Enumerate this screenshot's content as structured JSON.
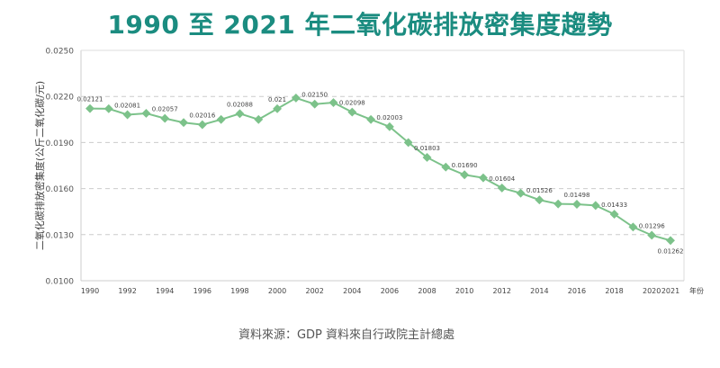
{
  "chart_data": {
    "type": "line",
    "title": "1990 至 2021 年二氧化碳排放密集度趨勢",
    "ylabel": "二氧化碳排放密集度(公斤二氧化碳/元)",
    "xlabel": "年份",
    "ylim": [
      0.01,
      0.025
    ],
    "yticks": [
      "0.0100",
      "0.0130",
      "0.0160",
      "0.0190",
      "0.0220",
      "0.0250"
    ],
    "xticks": [
      "1990",
      "1992",
      "1994",
      "1996",
      "1998",
      "2000",
      "2002",
      "2004",
      "2006",
      "2008",
      "2010",
      "2012",
      "2014",
      "2016",
      "2018",
      "2020",
      "2021"
    ],
    "grid": "horizontal-dashed",
    "color": "#7cc28a",
    "x": [
      1990,
      1991,
      1992,
      1993,
      1994,
      1995,
      1996,
      1997,
      1998,
      1999,
      2000,
      2001,
      2002,
      2003,
      2004,
      2005,
      2006,
      2007,
      2008,
      2009,
      2010,
      2011,
      2012,
      2013,
      2014,
      2015,
      2016,
      2017,
      2018,
      2019,
      2020,
      2021
    ],
    "values": [
      0.02121,
      0.0212,
      0.02081,
      0.0209,
      0.02057,
      0.0203,
      0.02016,
      0.0205,
      0.02088,
      0.0205,
      0.0212,
      0.0219,
      0.0215,
      0.0216,
      0.02098,
      0.0205,
      0.02003,
      0.019,
      0.01803,
      0.0174,
      0.0169,
      0.0167,
      0.01604,
      0.0157,
      0.01526,
      0.015,
      0.01498,
      0.0149,
      0.01433,
      0.0135,
      0.01296,
      0.01262
    ],
    "data_labels": {
      "1990": "0.02121",
      "1992": "0.02081",
      "1994": "0.02057",
      "1996": "0.02016",
      "1998": "0.02088",
      "2000": "0.021",
      "2002": "0.02150",
      "2004": "0.02098",
      "2006": "0.02003",
      "2008": "0.01803",
      "2010": "0.01690",
      "2012": "0.01604",
      "2014": "0.01526",
      "2016": "0.01498",
      "2018": "0.01433",
      "2020": "0.01296",
      "2021": "0.01262"
    }
  },
  "source": "資料來源：GDP 資料來自行政院主計總處"
}
